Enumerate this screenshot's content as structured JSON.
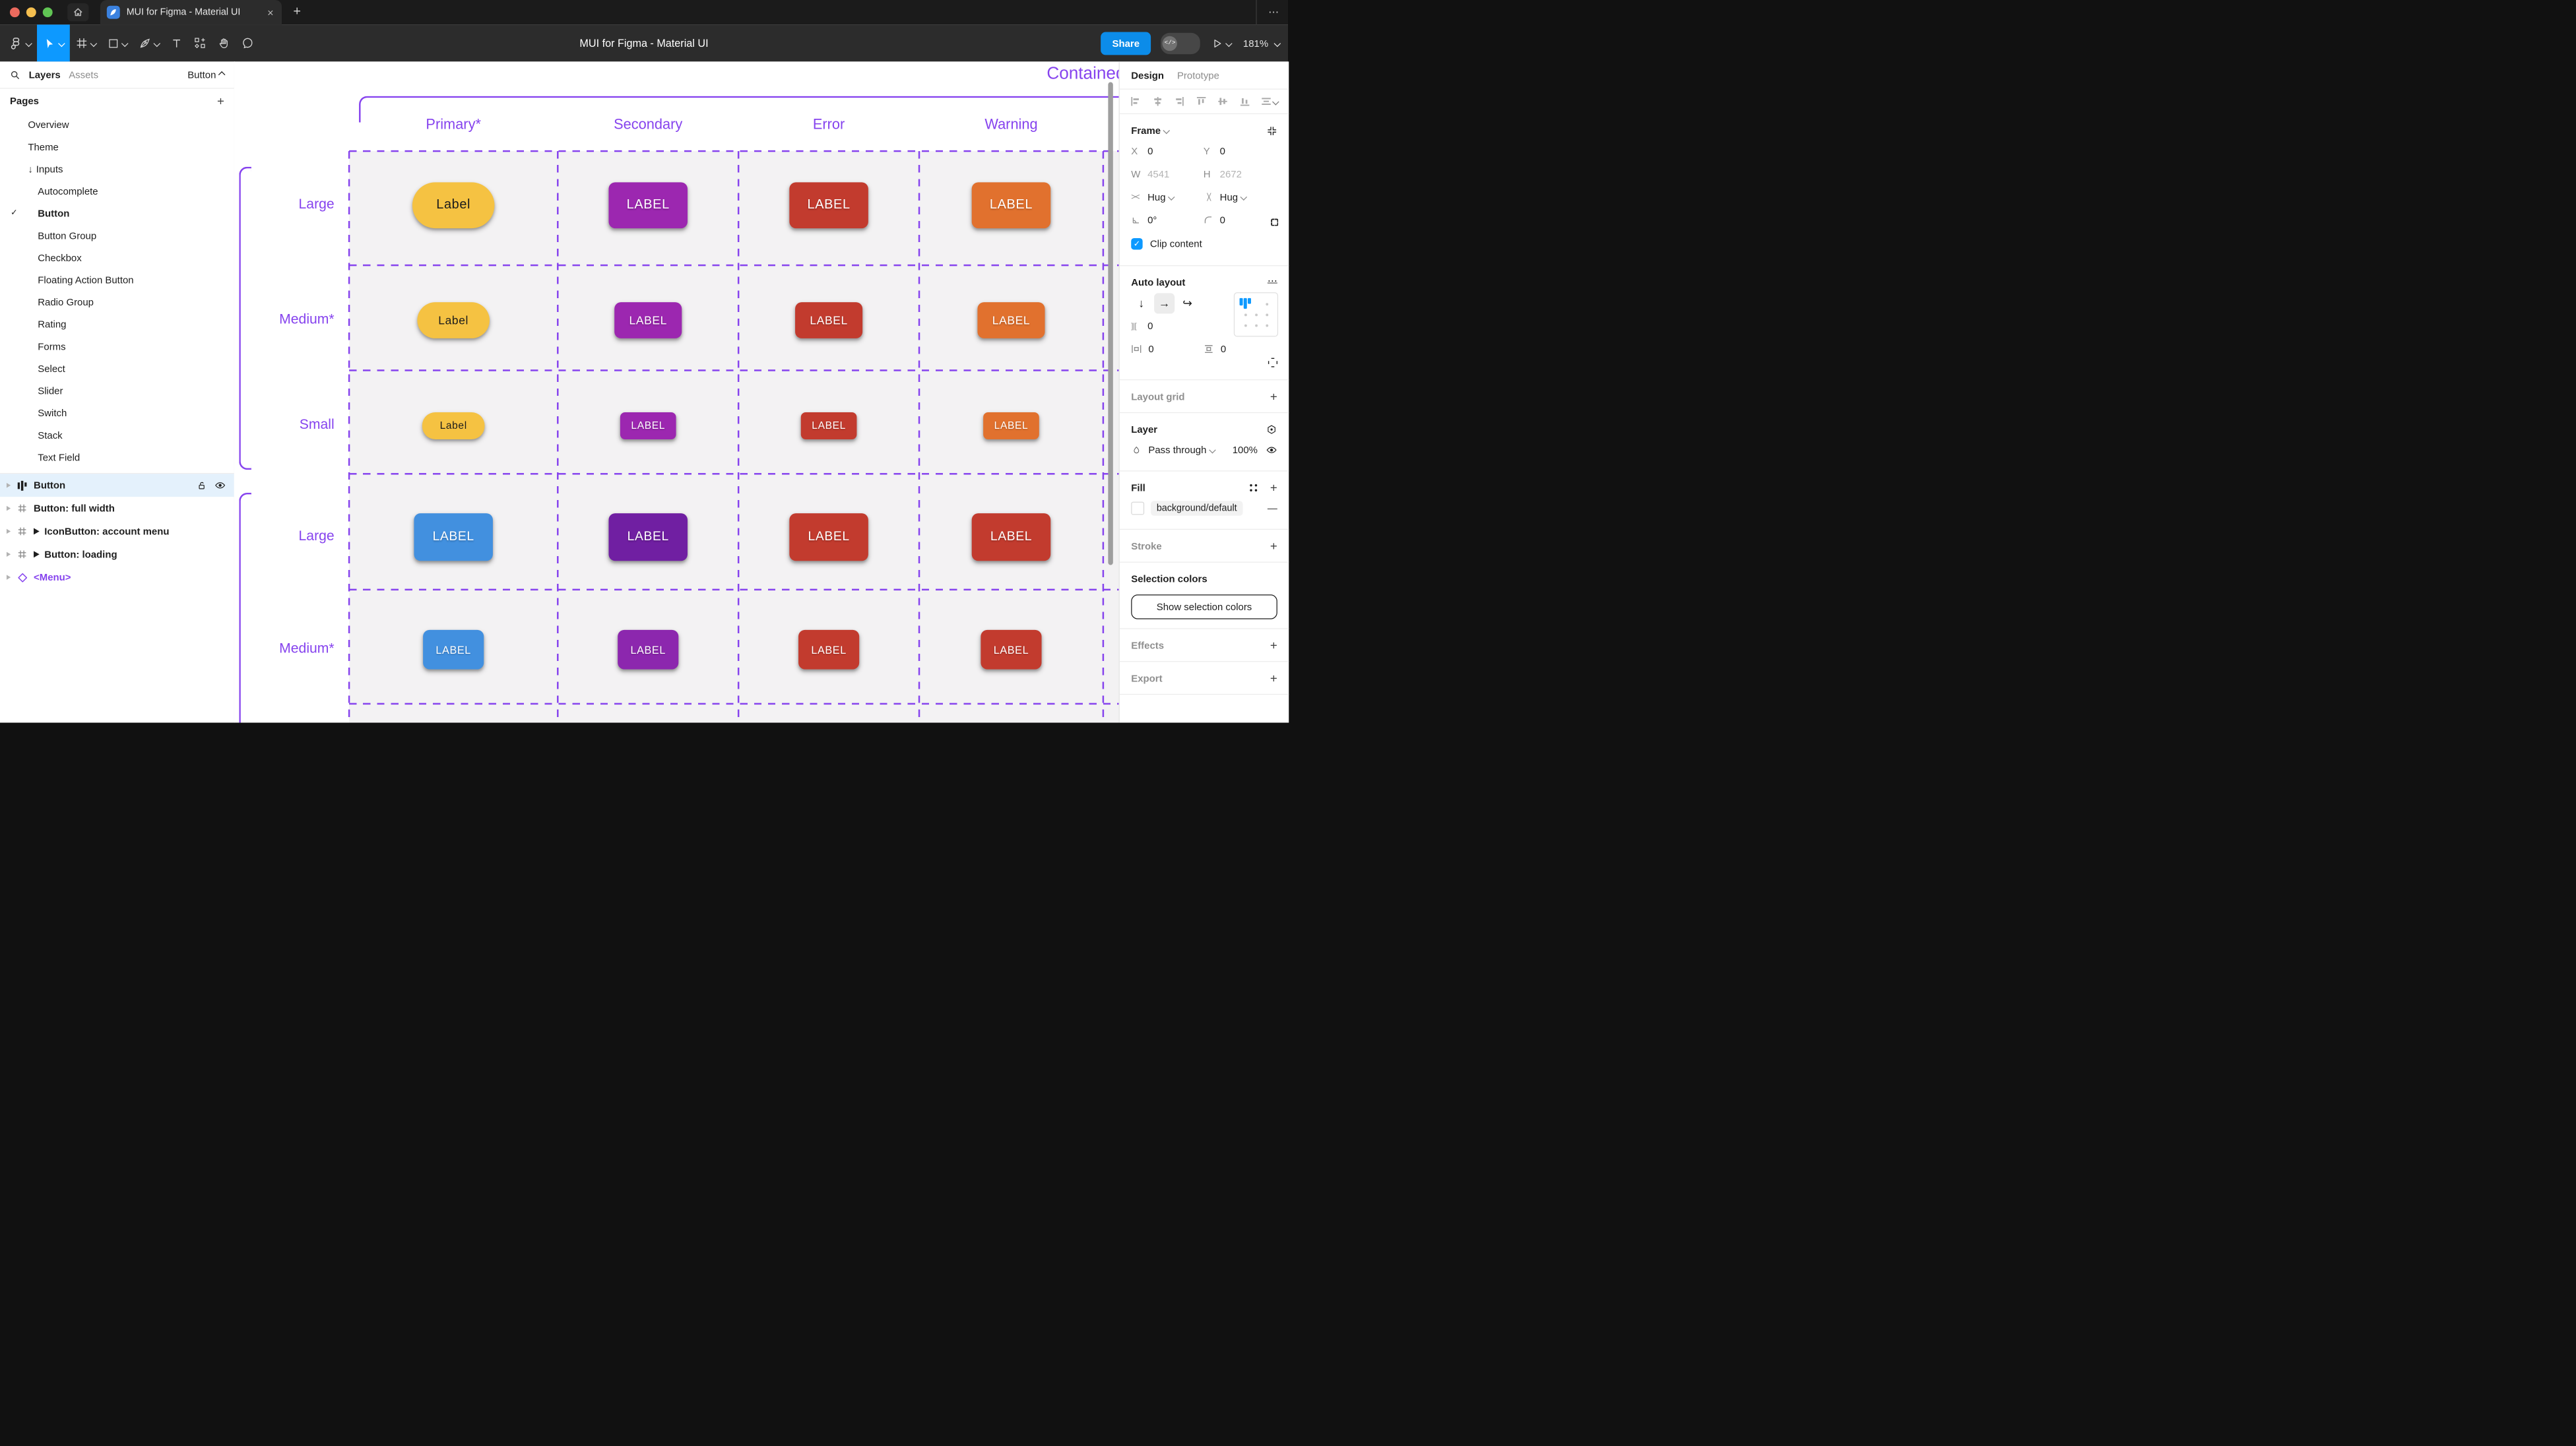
{
  "browser": {
    "tab_title": "MUI for Figma - Material UI",
    "close_glyph": "×",
    "new_tab_glyph": "+",
    "overflow_glyph": "⋯"
  },
  "toolbar": {
    "doc_title": "MUI for Figma - Material UI",
    "share_label": "Share",
    "dev_glyph": "</>",
    "zoom_level": "181%"
  },
  "sidebar": {
    "tabs": {
      "layers": "Layers",
      "assets": "Assets"
    },
    "page_selector": "Button",
    "pages_header": "Pages",
    "pages_add_glyph": "+",
    "pages": [
      {
        "label": "Overview",
        "indent": 1
      },
      {
        "label": "Theme",
        "indent": 1
      },
      {
        "label": "Inputs",
        "indent": 1,
        "arrow": true
      },
      {
        "label": "Autocomplete",
        "indent": 2
      },
      {
        "label": "Button",
        "indent": 2,
        "checked": true,
        "bold": true
      },
      {
        "label": "Button Group",
        "indent": 2
      },
      {
        "label": "Checkbox",
        "indent": 2
      },
      {
        "label": "Floating Action Button",
        "indent": 2
      },
      {
        "label": "Radio Group",
        "indent": 2
      },
      {
        "label": "Rating",
        "indent": 2
      },
      {
        "label": "Forms",
        "indent": 2
      },
      {
        "label": "Select",
        "indent": 2
      },
      {
        "label": "Slider",
        "indent": 2
      },
      {
        "label": "Switch",
        "indent": 2
      },
      {
        "label": "Stack",
        "indent": 2
      },
      {
        "label": "Text Field",
        "indent": 2
      }
    ],
    "arrow_glyph": "↓",
    "check_glyph": "✓",
    "layers": [
      {
        "label": "Button",
        "icon": "autolayout",
        "selected": true
      },
      {
        "label": "Button: full width",
        "icon": "frame"
      },
      {
        "label": "IconButton: account menu",
        "icon": "frame",
        "play": true
      },
      {
        "label": "Button: loading",
        "icon": "frame",
        "play": true
      },
      {
        "label": "<Menu>",
        "icon": "instance",
        "purple": true
      }
    ]
  },
  "canvas": {
    "frame_title": "Contained",
    "columns": [
      "Primary*",
      "Secondary",
      "Error",
      "Warning"
    ],
    "rows": [
      {
        "label": "Large",
        "size": "large",
        "cells": [
          {
            "text": "Label",
            "bg": "#F5C242",
            "fg": "#1b1b1b",
            "pill": true
          },
          {
            "text": "LABEL",
            "bg": "#9C27B0"
          },
          {
            "text": "LABEL",
            "bg": "#C23B2E"
          },
          {
            "text": "LABEL",
            "bg": "#E1712E"
          }
        ]
      },
      {
        "label": "Medium*",
        "size": "medium",
        "cells": [
          {
            "text": "Label",
            "bg": "#F5C242",
            "fg": "#1b1b1b",
            "pill": true
          },
          {
            "text": "LABEL",
            "bg": "#9C27B0"
          },
          {
            "text": "LABEL",
            "bg": "#C23B2E"
          },
          {
            "text": "LABEL",
            "bg": "#E1712E"
          }
        ]
      },
      {
        "label": "Small",
        "size": "small",
        "cells": [
          {
            "text": "Label",
            "bg": "#F5C242",
            "fg": "#1b1b1b",
            "pill": true
          },
          {
            "text": "LABEL",
            "bg": "#9C27B0"
          },
          {
            "text": "LABEL",
            "bg": "#C23B2E"
          },
          {
            "text": "LABEL",
            "bg": "#E1712E"
          }
        ]
      },
      {
        "label": "Large",
        "size": "large2",
        "cells": [
          {
            "text": "LABEL",
            "bg": "#4290DF"
          },
          {
            "text": "LABEL",
            "bg": "#701FA2"
          },
          {
            "text": "LABEL",
            "bg": "#C23B2E"
          },
          {
            "text": "LABEL",
            "bg": "#C23B2E"
          }
        ]
      },
      {
        "label": "Medium*",
        "size": "medium2",
        "cells": [
          {
            "text": "LABEL",
            "bg": "#4290DF"
          },
          {
            "text": "LABEL",
            "bg": "#8C27AE"
          },
          {
            "text": "LABEL",
            "bg": "#C23B2E"
          },
          {
            "text": "LABEL",
            "bg": "#C23B2E"
          }
        ]
      }
    ],
    "accent_color": "#8643EE"
  },
  "inspector": {
    "tabs": {
      "design": "Design",
      "prototype": "Prototype"
    },
    "frame": {
      "header": "Frame",
      "x_label": "X",
      "x": "0",
      "y_label": "Y",
      "y": "0",
      "w_label": "W",
      "w": "4541",
      "h_label": "H",
      "h": "2672",
      "hug_h": "Hug",
      "hug_v": "Hug",
      "angle": "0°",
      "radius": "0",
      "clip_label": "Clip content",
      "check_glyph": "✓"
    },
    "auto_layout": {
      "header": "Auto layout",
      "minus_glyph": "—",
      "down_glyph": "↓",
      "right_glyph": "→",
      "wrap_glyph": "↩",
      "more_glyph": "⋯",
      "gap_icon": "]|[",
      "gap": "0",
      "pad_h": "0",
      "pad_v": "0"
    },
    "layout_grid": {
      "header": "Layout grid",
      "add_glyph": "+"
    },
    "layer": {
      "header": "Layer",
      "blend": "Pass through",
      "opacity": "100%"
    },
    "fill": {
      "header": "Fill",
      "value": "background/default",
      "add_glyph": "+",
      "remove_glyph": "—"
    },
    "stroke": {
      "header": "Stroke",
      "add_glyph": "+"
    },
    "selection_colors": {
      "header": "Selection colors",
      "button": "Show selection colors"
    },
    "effects": {
      "header": "Effects",
      "add_glyph": "+"
    },
    "export": {
      "header": "Export",
      "add_glyph": "+"
    }
  }
}
